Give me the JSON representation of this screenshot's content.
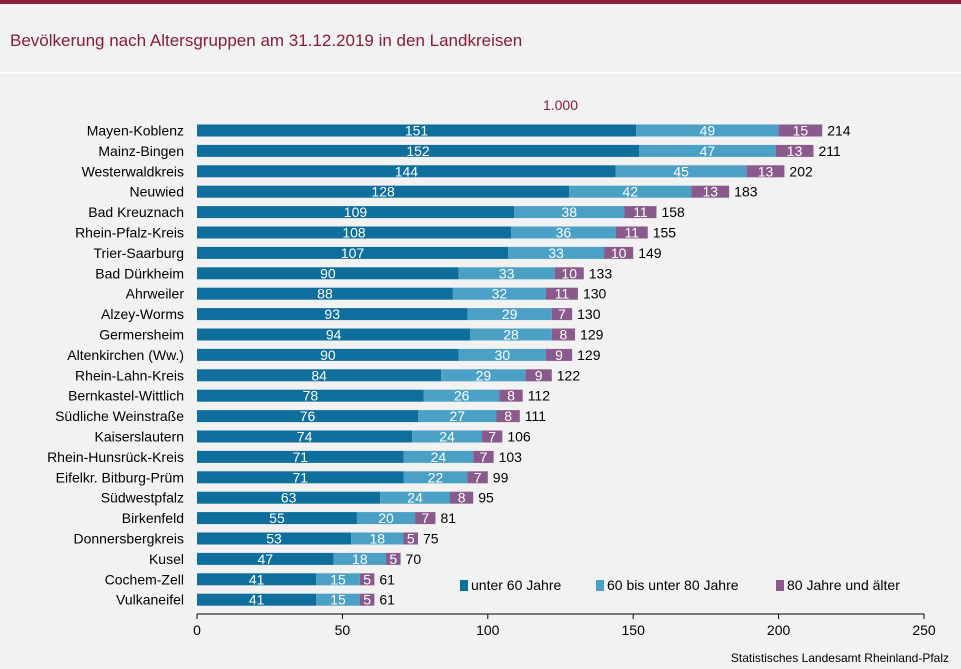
{
  "title": "Bevölkerung nach Altersgruppen am 31.12.2019 in den Landkreisen",
  "unit_label": "1.000",
  "source": "Statistisches Landesamt Rheinland-Pfalz",
  "colors": {
    "s1": "#0e6e9c",
    "s2": "#4aa0c5",
    "s3": "#8a5a8c",
    "title": "#8a1c35"
  },
  "chart_data": {
    "type": "bar",
    "orientation": "horizontal",
    "stacked": true,
    "title": "Bevölkerung nach Altersgruppen am 31.12.2019 in den Landkreisen",
    "unit": "1.000",
    "xlim": [
      0,
      250
    ],
    "xticks": [
      "0",
      "50",
      "100",
      "150",
      "200",
      "250"
    ],
    "xtick_values": [
      0,
      50,
      100,
      150,
      200,
      250
    ],
    "legend_position": "bottom-right",
    "categories": [
      "Mayen-Koblenz",
      "Mainz-Bingen",
      "Westerwaldkreis",
      "Neuwied",
      "Bad Kreuznach",
      "Rhein-Pfalz-Kreis",
      "Trier-Saarburg",
      "Bad Dürkheim",
      "Ahrweiler",
      "Alzey-Worms",
      "Germersheim",
      "Altenkirchen (Ww.)",
      "Rhein-Lahn-Kreis",
      "Bernkastel-Wittlich",
      "Südliche Weinstraße",
      "Kaiserslautern",
      "Rhein-Hunsrück-Kreis",
      "Eifelkr. Bitburg-Prüm",
      "Südwestpfalz",
      "Birkenfeld",
      "Donnersbergkreis",
      "Kusel",
      "Cochem-Zell",
      "Vulkaneifel"
    ],
    "series": [
      {
        "name": "unter 60 Jahre",
        "values": [
          151,
          152,
          144,
          128,
          109,
          108,
          107,
          90,
          88,
          93,
          94,
          90,
          84,
          78,
          76,
          74,
          71,
          71,
          63,
          55,
          53,
          47,
          41,
          41
        ]
      },
      {
        "name": "60 bis unter 80 Jahre",
        "values": [
          49,
          47,
          45,
          42,
          38,
          36,
          33,
          33,
          32,
          29,
          28,
          30,
          29,
          26,
          27,
          24,
          24,
          22,
          24,
          20,
          18,
          18,
          15,
          15
        ]
      },
      {
        "name": "80 Jahre und älter",
        "values": [
          15,
          13,
          13,
          13,
          11,
          11,
          10,
          10,
          11,
          7,
          8,
          9,
          9,
          8,
          8,
          7,
          7,
          7,
          8,
          7,
          5,
          5,
          5,
          5
        ]
      }
    ],
    "totals": [
      214,
      211,
      202,
      183,
      158,
      155,
      149,
      133,
      130,
      130,
      129,
      129,
      122,
      112,
      111,
      106,
      103,
      99,
      95,
      81,
      75,
      70,
      61,
      61
    ]
  }
}
